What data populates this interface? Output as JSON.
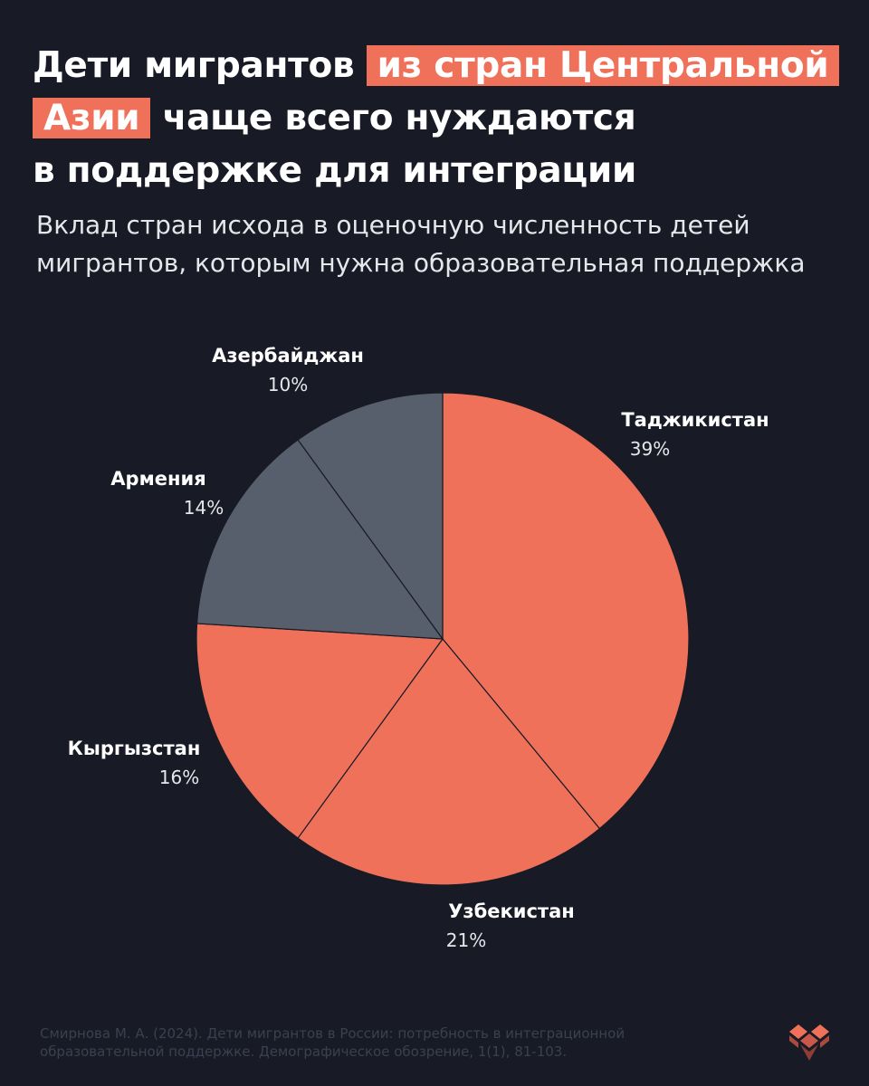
{
  "title": {
    "line1_plain": "Дети мигрантов",
    "line1_highlight": "из стран Центральной",
    "line2_highlight": "Азии",
    "line2_plain": "чаще всего нуждаются",
    "line3_plain": "в поддержке для интеграции"
  },
  "subtitle": {
    "line1": "Вклад стран исхода в оценочную численность детей",
    "line2": "мигрантов, которым нужна образовательная поддержка"
  },
  "colors": {
    "accent": "#f0715a",
    "muted": "#575e6c",
    "background": "#181b25"
  },
  "chart_data": {
    "type": "pie",
    "title": "",
    "slices": [
      {
        "label": "Таджикистан",
        "value": 39,
        "value_label": "39%",
        "color": "#f0715a"
      },
      {
        "label": "Узбекистан",
        "value": 21,
        "value_label": "21%",
        "color": "#f0715a"
      },
      {
        "label": "Кыргызстан",
        "value": 16,
        "value_label": "16%",
        "color": "#f0715a"
      },
      {
        "label": "Армения",
        "value": 14,
        "value_label": "14%",
        "color": "#575e6c"
      },
      {
        "label": "Азербайджан",
        "value": 10,
        "value_label": "10%",
        "color": "#575e6c"
      }
    ]
  },
  "source": {
    "line1": "Смирнова М. А. (2024). Дети мигрантов в России: потребность в интеграционной",
    "line2": "образовательной поддержке. Демографическое обозрение, 1(1), 81-103."
  },
  "logo": {
    "icon": "heart-blocks-logo"
  }
}
